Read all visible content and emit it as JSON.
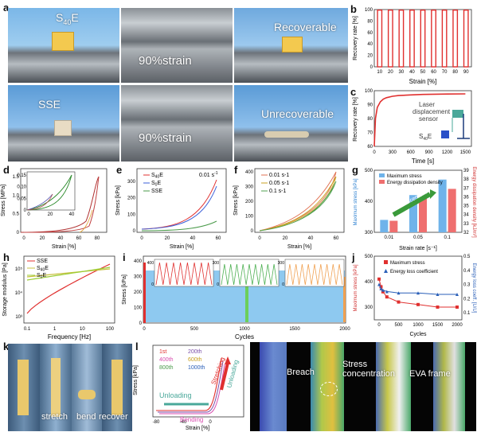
{
  "panels": {
    "a": {
      "label": "a",
      "photo_texts": [
        "S40E",
        "",
        "Recoverable",
        "SSE",
        "90%strain",
        "Unrecoverable"
      ],
      "strain_text": "90%strain",
      "s40e_main": "S",
      "s40e_sub": "40",
      "s40e_tail": "E"
    },
    "b": {
      "label": "b",
      "ylabel": "Recovery rate [%]",
      "xlabel": "Strain [%]"
    },
    "c": {
      "label": "c",
      "ylabel": "Recovery rate [%]",
      "xlabel": "Time [s]",
      "note_line1": "Laser",
      "note_line2": "displacement",
      "note_line3": "sensor",
      "sample_main": "S",
      "sample_sub": "40",
      "sample_tail": "E"
    },
    "d": {
      "label": "d",
      "ylabel": "Stress [MPa]",
      "xlabel": "Strain [%]"
    },
    "e": {
      "label": "e",
      "ylabel": "Stress [kPa]",
      "xlabel": "Strain [%]",
      "rate": "0.01 s",
      "rate_sup": "-1"
    },
    "f": {
      "label": "f",
      "ylabel": "Stress [kPa]",
      "xlabel": "Strain [%]"
    },
    "g": {
      "label": "g",
      "ylabel_left": "Maximum stress [kPa]",
      "ylabel_right": "Energy dissipation density [kJ/m³]",
      "xlabel": "Strain rate [s⁻¹]",
      "arrow_text": "Enhancement"
    },
    "h": {
      "label": "h",
      "ylabel": "Storage modulus [Pa]",
      "xlabel": "Frequency [Hz]"
    },
    "i": {
      "label": "i",
      "ylabel": "Stress [kPa]",
      "xlabel": "Cycles"
    },
    "j": {
      "label": "j",
      "ylabel_left": "Maximum stress [kPa]",
      "ylabel_right": "Energy loss coeff. [U/U]",
      "xlabel": "Cycles"
    },
    "k": {
      "label": "k",
      "captions": [
        "stretch",
        "bend",
        "recover"
      ]
    },
    "l": {
      "label": "l",
      "ylabel": "Stress [kPa]",
      "xlabel": "Strain [%]",
      "unloading_left": "Unloading",
      "unloading_right": "Unloading",
      "stretching": "Stretching",
      "bending": "Bending"
    },
    "m": {
      "label": "m",
      "annotations": [
        "Breach",
        "Stress concentration",
        "EVA frame"
      ]
    }
  },
  "colors": {
    "red": "#e0302f",
    "blue": "#3b8fd9",
    "green": "#4caf50",
    "orange": "#f0a050",
    "olive": "#c8c040",
    "teal": "#4aa89a",
    "purple": "#7b4fa8"
  },
  "chart_data": [
    {
      "id": "b",
      "type": "bar",
      "categories": [
        "10",
        "20",
        "30",
        "40",
        "50",
        "60",
        "70",
        "80",
        "90"
      ],
      "values": [
        99,
        99,
        99,
        99,
        99,
        99,
        99,
        99,
        99
      ],
      "xlabel": "Strain [%]",
      "ylabel": "Recovery rate [%]",
      "ylim": [
        0,
        100
      ],
      "yticks": [
        "0",
        "20",
        "40",
        "60",
        "80",
        "100"
      ]
    },
    {
      "id": "c",
      "type": "line",
      "x": [
        0,
        20,
        50,
        100,
        150,
        200,
        300,
        400,
        600,
        800,
        1000,
        1200,
        1500
      ],
      "y": [
        60,
        80,
        88,
        92,
        94,
        95,
        96,
        96.5,
        97,
        97.3,
        97.5,
        97.6,
        97.7
      ],
      "xlabel": "Time [s]",
      "ylabel": "Recovery rate [%]",
      "xlim": [
        0,
        1600
      ],
      "ylim": [
        60,
        100
      ],
      "xticks": [
        "0",
        "300",
        "600",
        "900",
        "1200",
        "1500"
      ],
      "yticks": [
        "60",
        "70",
        "80",
        "90",
        "100"
      ]
    },
    {
      "id": "d",
      "type": "line",
      "xlabel": "Strain [%]",
      "ylabel": "Stress [MPa]",
      "xticks": [
        "0",
        "20",
        "40",
        "60",
        "80"
      ],
      "yticks": [
        "0",
        "0.5",
        "1.0",
        "1.5"
      ],
      "inset_yticks": [
        "0",
        "0.05",
        "0.10",
        "0.15"
      ],
      "inset_xticks": [
        "0",
        "20",
        "40"
      ]
    },
    {
      "id": "e",
      "type": "line",
      "series": [
        {
          "name": "S40E"
        },
        {
          "name": "S0E"
        },
        {
          "name": "SSE"
        }
      ],
      "xlabel": "Strain [%]",
      "ylabel": "Stress [kPa]",
      "xticks": [
        "0",
        "20",
        "40",
        "60"
      ],
      "yticks": [
        "0",
        "100",
        "200",
        "300"
      ]
    },
    {
      "id": "f",
      "type": "line",
      "series": [
        {
          "name": "0.01 s-1"
        },
        {
          "name": "0.05 s-1"
        },
        {
          "name": "0.1 s-1"
        }
      ],
      "xlabel": "Strain [%]",
      "ylabel": "Stress [kPa]",
      "xticks": [
        "0",
        "20",
        "40",
        "60"
      ],
      "yticks": [
        "0",
        "100",
        "200",
        "300",
        "400"
      ]
    },
    {
      "id": "g",
      "type": "bar",
      "categories": [
        "0.01",
        "0.05",
        "0.1"
      ],
      "series": [
        {
          "name": "Maximum stress",
          "values": [
            340,
            420,
            470
          ]
        },
        {
          "name": "Energy dissipation density",
          "values": [
            33.3,
            35.9,
            36.9
          ]
        }
      ],
      "yticks_left": [
        "300",
        "400",
        "500"
      ],
      "yticks_right": [
        "32",
        "33",
        "34",
        "35",
        "36",
        "37",
        "38",
        "39"
      ]
    },
    {
      "id": "h",
      "type": "line",
      "series": [
        {
          "name": "SSE"
        },
        {
          "name": "S40E"
        },
        {
          "name": "S0E"
        }
      ],
      "xlabel": "Frequency [Hz]",
      "ylabel": "Storage modulus [Pa]",
      "xticks": [
        "0.1",
        "1",
        "10",
        "100"
      ],
      "yticks": [
        "10³",
        "10⁴",
        "10⁵"
      ]
    },
    {
      "id": "i",
      "type": "line",
      "xlabel": "Cycles",
      "ylabel": "Stress [kPa]",
      "xticks": [
        "0",
        "500",
        "1000",
        "1500",
        "2000"
      ],
      "yticks": [
        "0",
        "100",
        "200",
        "300",
        "400"
      ],
      "inset_yticks": [
        "400",
        "0",
        "300",
        "0",
        "300",
        "0"
      ]
    },
    {
      "id": "j",
      "type": "line",
      "series": [
        {
          "name": "Maximum stress",
          "x": [
            1,
            50,
            100,
            200,
            500,
            1000,
            1500,
            2000
          ],
          "values": [
            410,
            380,
            360,
            340,
            320,
            310,
            300,
            300
          ]
        },
        {
          "name": "Energy loss coefficient",
          "x": [
            1,
            50,
            100,
            200,
            500,
            1000,
            1500,
            2000
          ],
          "values": [
            0.3,
            0.27,
            0.26,
            0.25,
            0.24,
            0.24,
            0.23,
            0.23
          ]
        }
      ],
      "xlabel": "Cycles",
      "xticks": [
        "0",
        "500",
        "1000",
        "1500",
        "2000"
      ],
      "yticks_left": [
        "300",
        "400",
        "500"
      ],
      "yticks_right": [
        "0.1",
        "0.2",
        "0.3",
        "0.4",
        "0.5"
      ]
    },
    {
      "id": "l",
      "type": "line",
      "series": [
        {
          "name": "1st"
        },
        {
          "name": "200th"
        },
        {
          "name": "400th"
        },
        {
          "name": "600th"
        },
        {
          "name": "800th"
        },
        {
          "name": "1000th"
        }
      ],
      "xlabel": "Strain [%]",
      "ylabel": "Stress [kPa]",
      "xticks": [
        "-80",
        "-40",
        "0"
      ]
    }
  ]
}
